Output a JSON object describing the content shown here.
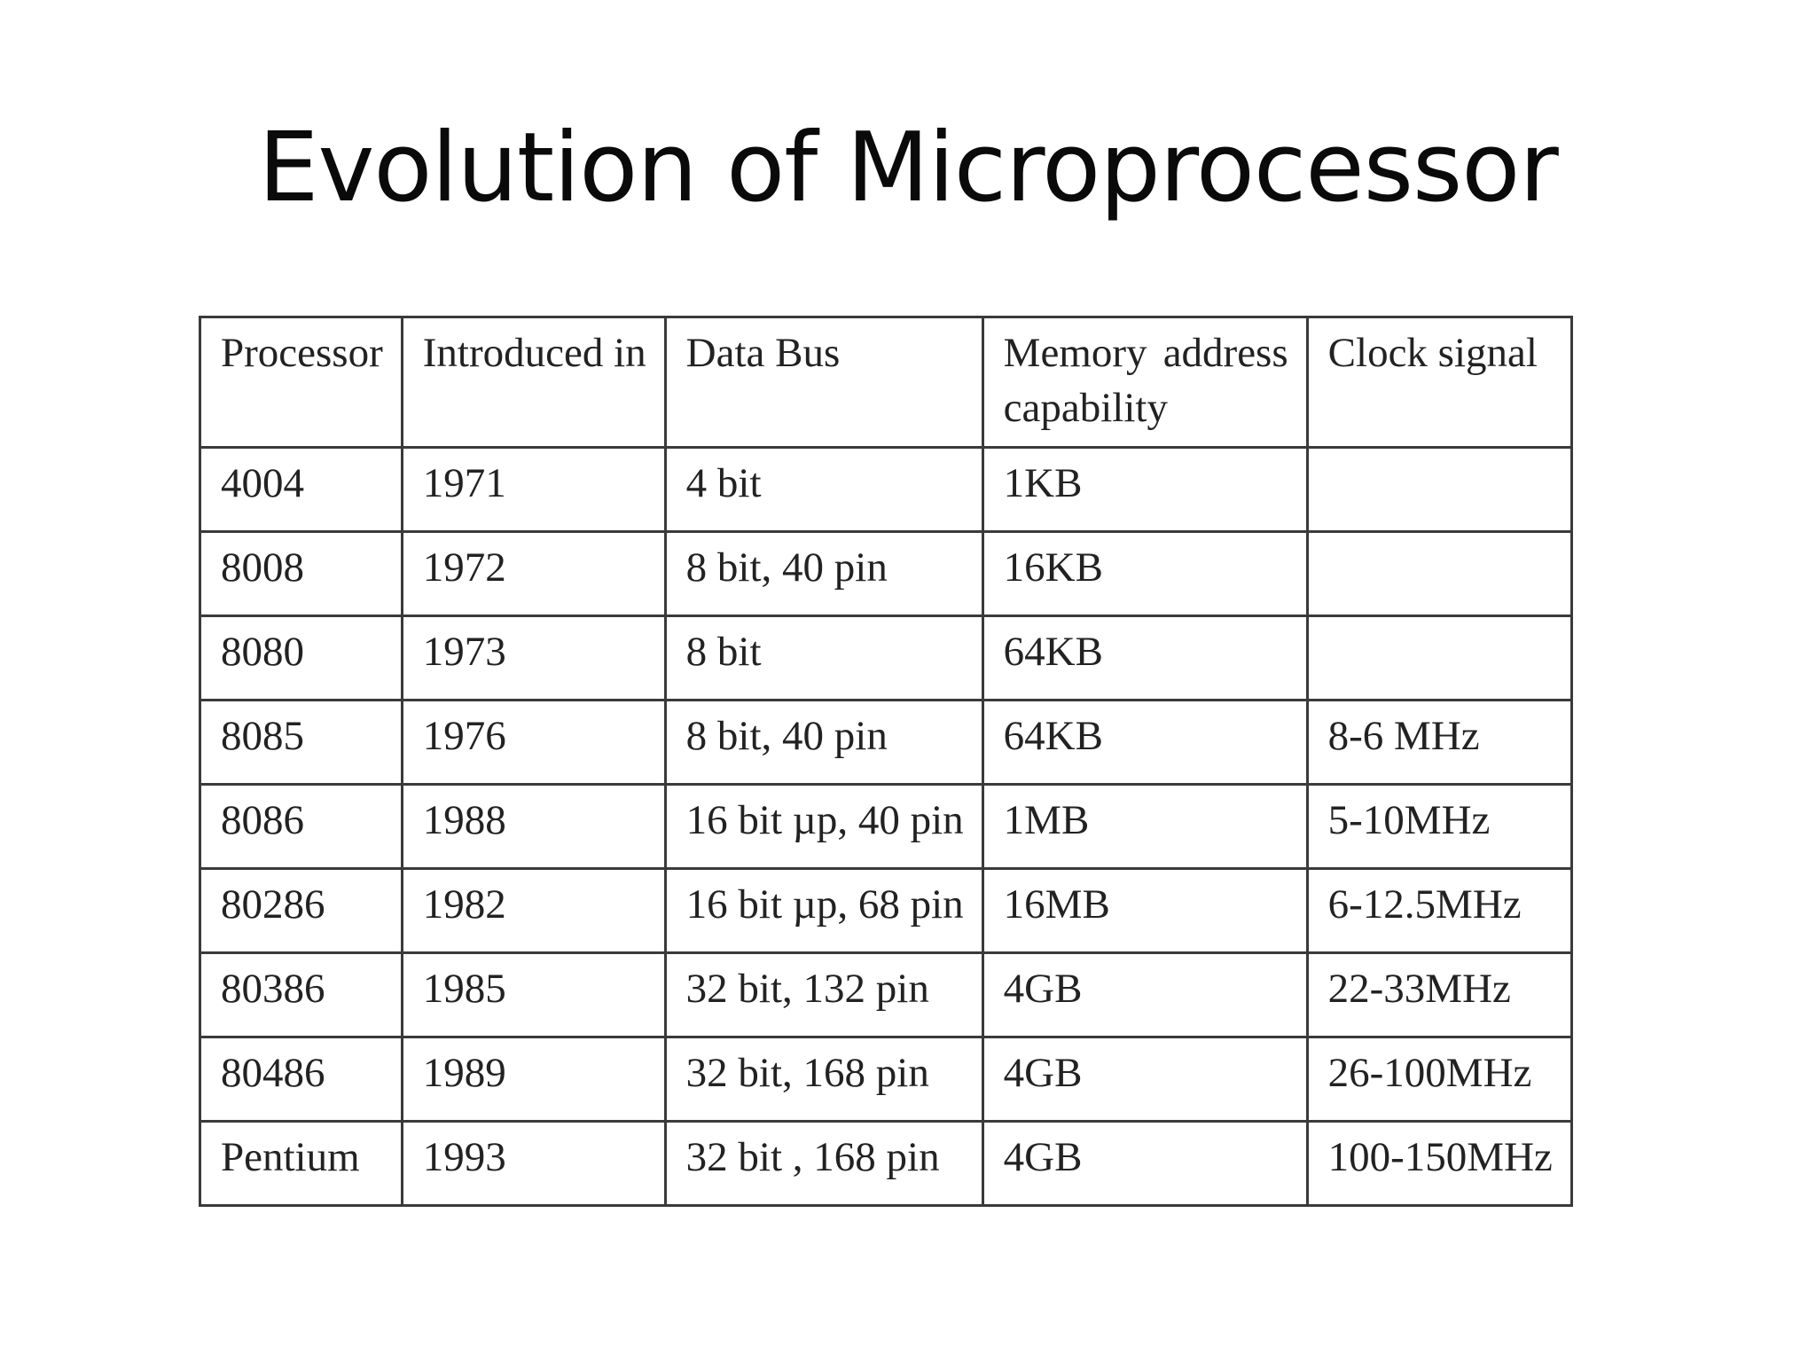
{
  "slide": {
    "title": "Evolution of Microprocessor"
  },
  "table": {
    "headers": {
      "processor": "Processor",
      "introduced": "Introduced in",
      "data_bus": "Data Bus",
      "memory_word1": "Memory",
      "memory_word2": "address",
      "memory_word3": "capability",
      "clock": "Clock signal"
    },
    "rows": [
      {
        "processor": "4004",
        "introduced": "1971",
        "data_bus": "4 bit",
        "memory": "1KB",
        "clock": ""
      },
      {
        "processor": "8008",
        "introduced": "1972",
        "data_bus": "8 bit, 40 pin",
        "memory": "16KB",
        "clock": ""
      },
      {
        "processor": "8080",
        "introduced": "1973",
        "data_bus": "8 bit",
        "memory": "64KB",
        "clock": ""
      },
      {
        "processor": "8085",
        "introduced": "1976",
        "data_bus": "8 bit, 40 pin",
        "memory": "64KB",
        "clock": "8-6 MHz"
      },
      {
        "processor": "8086",
        "introduced": "1988",
        "data_bus": "16 bit µp, 40 pin",
        "memory": "1MB",
        "clock": "5-10MHz"
      },
      {
        "processor": "80286",
        "introduced": "1982",
        "data_bus": "16 bit µp, 68 pin",
        "memory": "16MB",
        "clock": "6-12.5MHz"
      },
      {
        "processor": "80386",
        "introduced": "1985",
        "data_bus": "32 bit, 132 pin",
        "memory": "4GB",
        "clock": "22-33MHz"
      },
      {
        "processor": "80486",
        "introduced": "1989",
        "data_bus": "32 bit, 168 pin",
        "memory": "4GB",
        "clock": "26-100MHz"
      },
      {
        "processor": "Pentium",
        "introduced": "1993",
        "data_bus": "32 bit , 168 pin",
        "memory": "4GB",
        "clock": "100-150MHz"
      }
    ]
  }
}
